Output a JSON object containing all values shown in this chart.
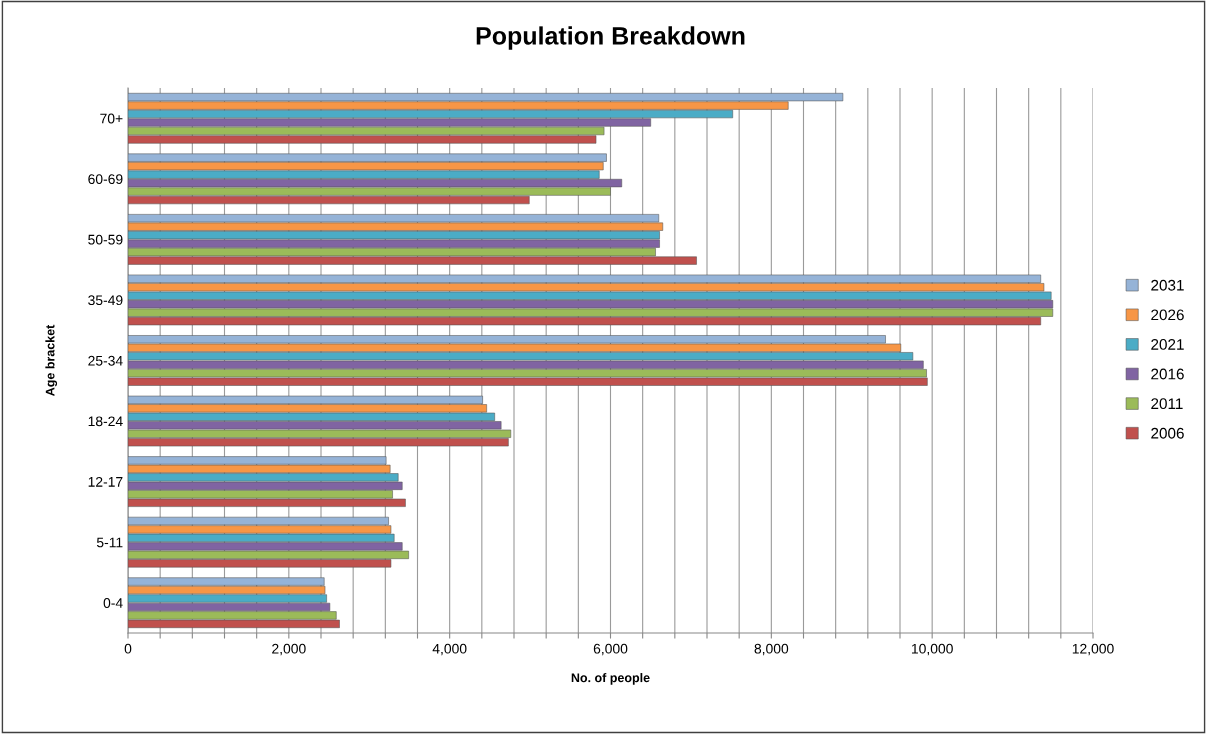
{
  "chart_data": {
    "type": "bar",
    "orientation": "horizontal",
    "title": "Population Breakdown",
    "xlabel": "No. of people",
    "ylabel": "Age bracket",
    "categories": [
      "70+",
      "60-69",
      "50-59",
      "35-49",
      "25-34",
      "18-24",
      "12-17",
      "5-11",
      "0-4"
    ],
    "series": [
      {
        "name": "2031",
        "color": "#95b3d7",
        "values": [
          8890,
          5950,
          6600,
          11350,
          9420,
          4410,
          3210,
          3240,
          2440
        ]
      },
      {
        "name": "2026",
        "color": "#f79646",
        "values": [
          8210,
          5910,
          6650,
          11390,
          9610,
          4460,
          3260,
          3270,
          2450
        ]
      },
      {
        "name": "2021",
        "color": "#4bacc6",
        "values": [
          7520,
          5860,
          6610,
          11480,
          9760,
          4560,
          3360,
          3310,
          2470
        ]
      },
      {
        "name": "2016",
        "color": "#8064a2",
        "values": [
          6500,
          6140,
          6610,
          11500,
          9890,
          4640,
          3410,
          3410,
          2510
        ]
      },
      {
        "name": "2011",
        "color": "#9bbb59",
        "values": [
          5920,
          6000,
          6560,
          11500,
          9930,
          4760,
          3290,
          3490,
          2590
        ]
      },
      {
        "name": "2006",
        "color": "#c0504d",
        "values": [
          5820,
          4990,
          7070,
          11350,
          9940,
          4730,
          3450,
          3270,
          2630
        ]
      }
    ],
    "xlim": [
      0,
      12000
    ],
    "xticks": [
      0,
      {
        "value": 400,
        "label": null
      },
      {
        "value": 800,
        "label": null
      },
      {
        "value": 1200,
        "label": null
      },
      {
        "value": 1600,
        "label": null
      },
      {
        "value": 2000,
        "label": "2,000"
      },
      {
        "value": 2400,
        "label": null
      },
      {
        "value": 2800,
        "label": null
      },
      {
        "value": 3200,
        "label": null
      },
      {
        "value": 3600,
        "label": null
      },
      {
        "value": 4000,
        "label": "4,000"
      },
      {
        "value": 4400,
        "label": null
      },
      {
        "value": 4800,
        "label": null
      },
      {
        "value": 5200,
        "label": null
      },
      {
        "value": 5600,
        "label": null
      },
      {
        "value": 6000,
        "label": "6,000"
      },
      {
        "value": 6400,
        "label": null
      },
      {
        "value": 6800,
        "label": null
      },
      {
        "value": 7200,
        "label": null
      },
      {
        "value": 7600,
        "label": null
      },
      {
        "value": 8000,
        "label": "8,000"
      },
      {
        "value": 8400,
        "label": null
      },
      {
        "value": 8800,
        "label": null
      },
      {
        "value": 9200,
        "label": null
      },
      {
        "value": 9600,
        "label": null
      },
      {
        "value": 10000,
        "label": "10,000"
      },
      {
        "value": 10400,
        "label": null
      },
      {
        "value": 10800,
        "label": null
      },
      {
        "value": 11200,
        "label": null
      },
      {
        "value": 11600,
        "label": null
      },
      {
        "value": 12000,
        "label": "12,000"
      }
    ],
    "grid": "x",
    "legend": "right"
  }
}
